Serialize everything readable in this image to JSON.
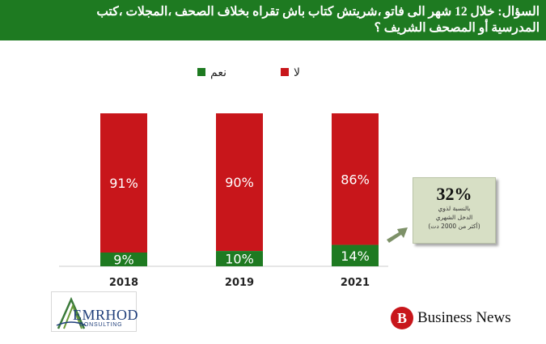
{
  "header": {
    "question_line1": "السؤال: خلال 12 شهر الى فاتو ،شريتش كتاب باش تقراه بخلاف الصحف ،المجلات ،كتب",
    "question_line2": "المدرسية أو المصحف الشريف ؟"
  },
  "legend": {
    "no_label": "لا",
    "yes_label": "نعم"
  },
  "colors": {
    "header_bg": "#1e7a21",
    "no": "#c8161b",
    "yes": "#1e7a21",
    "callout_bg": "#d7dfc5",
    "arrow": "#7d9168"
  },
  "chart_data": {
    "type": "bar",
    "stacked": true,
    "categories": [
      "2018",
      "2019",
      "2021"
    ],
    "series": [
      {
        "name": "نعم",
        "values": [
          9,
          10,
          14
        ]
      },
      {
        "name": "لا",
        "values": [
          91,
          90,
          86
        ]
      }
    ],
    "value_labels_yes": [
      "9%",
      "10%",
      "14%"
    ],
    "value_labels_no": [
      "91%",
      "90%",
      "86%"
    ],
    "ylim": [
      0,
      100
    ],
    "grid": false,
    "legend_position": "top"
  },
  "callout": {
    "value": "32%",
    "line1": "بالنسبة لذوي",
    "line2": "الدخل الشهري",
    "line3": "(أكثر من 2000 دت)"
  },
  "logos": {
    "emrhod_name": "EMRHOD",
    "emrhod_sub": "CONSULTING",
    "bn_letter": "B",
    "bn_name": "Business News"
  }
}
